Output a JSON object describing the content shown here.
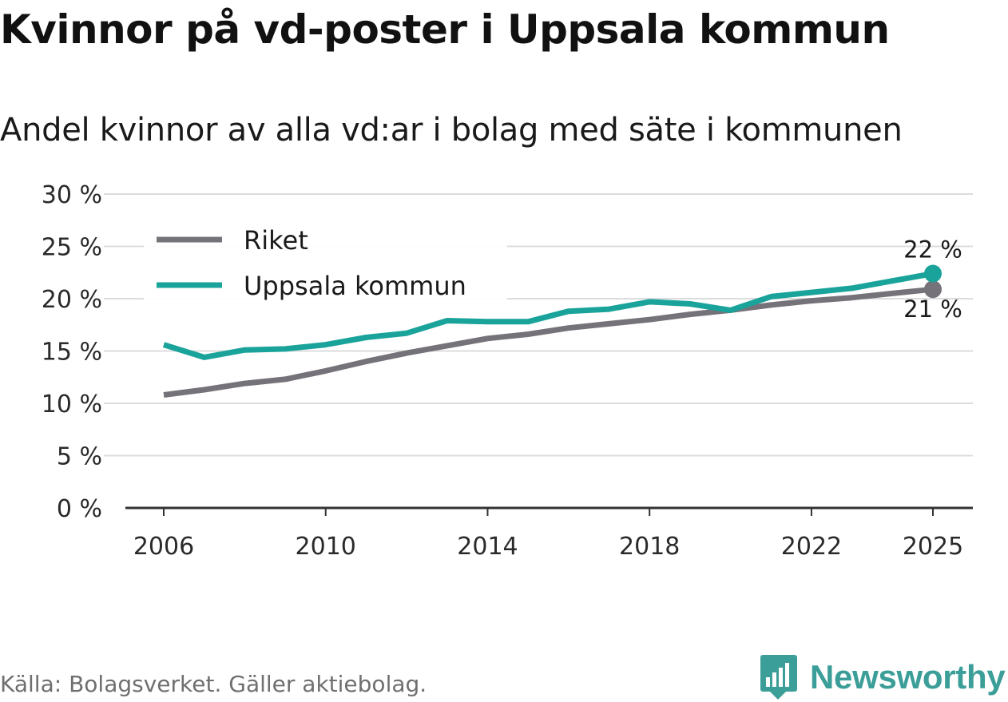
{
  "title": "Kvinnor på vd-poster i Uppsala kommun",
  "subtitle": "Andel kvinnor av alla vd:ar i bolag med säte i kommunen",
  "source": "Källa: Bolagsverket. Gäller aktiebolag.",
  "brand": {
    "name": "Newsworthy",
    "color": "#3c9e98"
  },
  "chart_data": {
    "type": "line",
    "title": "",
    "xlabel": "",
    "ylabel": "",
    "x": [
      2006,
      2007,
      2008,
      2009,
      2010,
      2011,
      2012,
      2013,
      2014,
      2015,
      2016,
      2017,
      2018,
      2019,
      2020,
      2021,
      2022,
      2023,
      2024,
      2025
    ],
    "xticks": [
      "2006",
      "2010",
      "2014",
      "2018",
      "2022",
      "2025"
    ],
    "yticks": [
      0,
      5,
      10,
      15,
      20,
      25,
      30
    ],
    "ytick_labels": [
      "0 %",
      "5 %",
      "10 %",
      "15 %",
      "20 %",
      "25 %",
      "30 %"
    ],
    "ylim": [
      0,
      30
    ],
    "legend_position": "top-left",
    "series": [
      {
        "name": "Riket",
        "color": "#757379",
        "values": [
          10.8,
          11.3,
          11.9,
          12.3,
          13.1,
          14.0,
          14.8,
          15.5,
          16.2,
          16.6,
          17.2,
          17.6,
          18.0,
          18.5,
          18.9,
          19.4,
          19.8,
          20.1,
          20.5,
          20.9
        ],
        "end_label": "21 %"
      },
      {
        "name": "Uppsala kommun",
        "color": "#1aa39a",
        "values": [
          15.6,
          14.4,
          15.1,
          15.2,
          15.6,
          16.3,
          16.7,
          17.9,
          17.8,
          17.8,
          18.8,
          19.0,
          19.7,
          19.5,
          18.9,
          20.2,
          20.6,
          21.0,
          21.7,
          22.4
        ],
        "end_label": "22 %"
      }
    ]
  }
}
